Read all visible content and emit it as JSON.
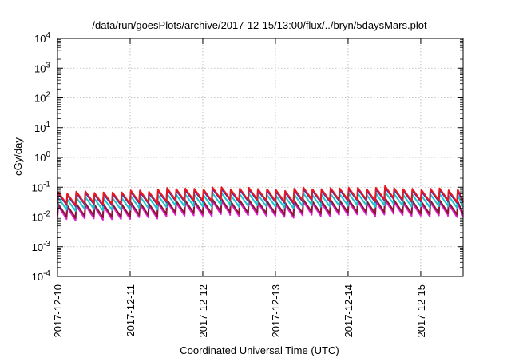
{
  "chart_data": {
    "type": "line",
    "title": "/data/run/goesPlots/archive/2017-12-15/13:00/flux/../bryn/5daysMars.plot",
    "xlabel": "Coordinated Universal Time (UTC)",
    "ylabel": "cGy/day",
    "x_start": "2017-12-10",
    "x_end": "2017-12-15 14:00",
    "xlim": [
      "2017-12-10 00:00",
      "2017-12-15 14:00"
    ],
    "x_ticks": [
      "2017-12-10",
      "2017-12-11",
      "2017-12-12",
      "2017-12-13",
      "2017-12-14",
      "2017-12-15"
    ],
    "y_scale": "log",
    "ylim": [
      0.0001,
      10000
    ],
    "y_ticks": [
      {
        "value": 0.0001,
        "base": "10",
        "exp": "-4"
      },
      {
        "value": 0.001,
        "base": "10",
        "exp": "-3"
      },
      {
        "value": 0.01,
        "base": "10",
        "exp": "-2"
      },
      {
        "value": 0.1,
        "base": "10",
        "exp": "-1"
      },
      {
        "value": 1,
        "base": "10",
        "exp": "0"
      },
      {
        "value": 10,
        "base": "10",
        "exp": "1"
      },
      {
        "value": 100,
        "base": "10",
        "exp": "2"
      },
      {
        "value": 1000,
        "base": "10",
        "exp": "3"
      },
      {
        "value": 10000,
        "base": "10",
        "exp": "4"
      }
    ],
    "grid": true,
    "period_hours": 3,
    "series": [
      {
        "color": "#e8171f",
        "peak": 0.07,
        "trough": 0.028
      },
      {
        "color": "#2838c8",
        "peak": 0.062,
        "trough": 0.026
      },
      {
        "color": "#20c4c8",
        "peak": 0.045,
        "trough": 0.018
      },
      {
        "color": "#8a1535",
        "peak": 0.028,
        "trough": 0.0105
      },
      {
        "color": "#e020d0",
        "peak": 0.024,
        "trough": 0.0088
      }
    ],
    "daily_level": [
      [
        "2017-12-10 00:00",
        1.0
      ],
      [
        "2017-12-10 12:00",
        0.95
      ],
      [
        "2017-12-11 00:00",
        1.02
      ],
      [
        "2017-12-11 12:00",
        1.25
      ],
      [
        "2017-12-12 00:00",
        1.3
      ],
      [
        "2017-12-12 12:00",
        1.35
      ],
      [
        "2017-12-13 00:00",
        1.15
      ],
      [
        "2017-12-13 12:00",
        1.3
      ],
      [
        "2017-12-14 00:00",
        1.32
      ],
      [
        "2017-12-14 12:00",
        1.4
      ],
      [
        "2017-12-15 00:00",
        1.2
      ],
      [
        "2017-12-15 14:00",
        1.28
      ]
    ]
  }
}
